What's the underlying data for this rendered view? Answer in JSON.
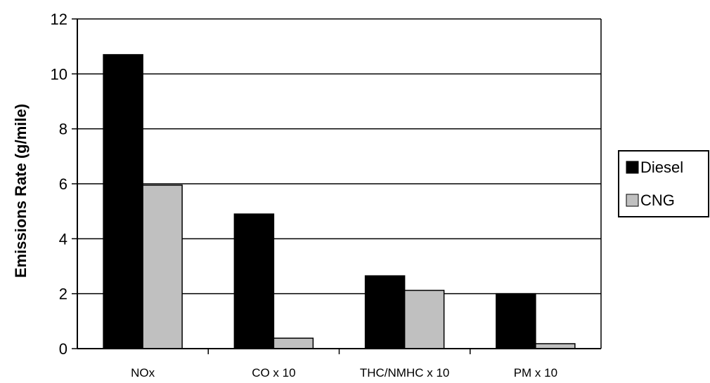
{
  "chart_data": {
    "type": "bar",
    "title": "",
    "xlabel": "",
    "ylabel": "Emissions Rate (g/mile)",
    "categories": [
      "NOx",
      "CO x 10",
      "THC/NMHC x 10",
      "PM x 10"
    ],
    "series": [
      {
        "name": "Diesel",
        "color": "#000000",
        "values": [
          10.7,
          4.9,
          2.65,
          2.0
        ]
      },
      {
        "name": "CNG",
        "color": "#c0c0c0",
        "values": [
          5.95,
          0.38,
          2.12,
          0.18
        ]
      }
    ],
    "ylim": [
      0,
      12
    ],
    "yticks": [
      "0",
      "2",
      "4",
      "6",
      "8",
      "10",
      "12"
    ],
    "grid": true,
    "legend_position": "right"
  }
}
